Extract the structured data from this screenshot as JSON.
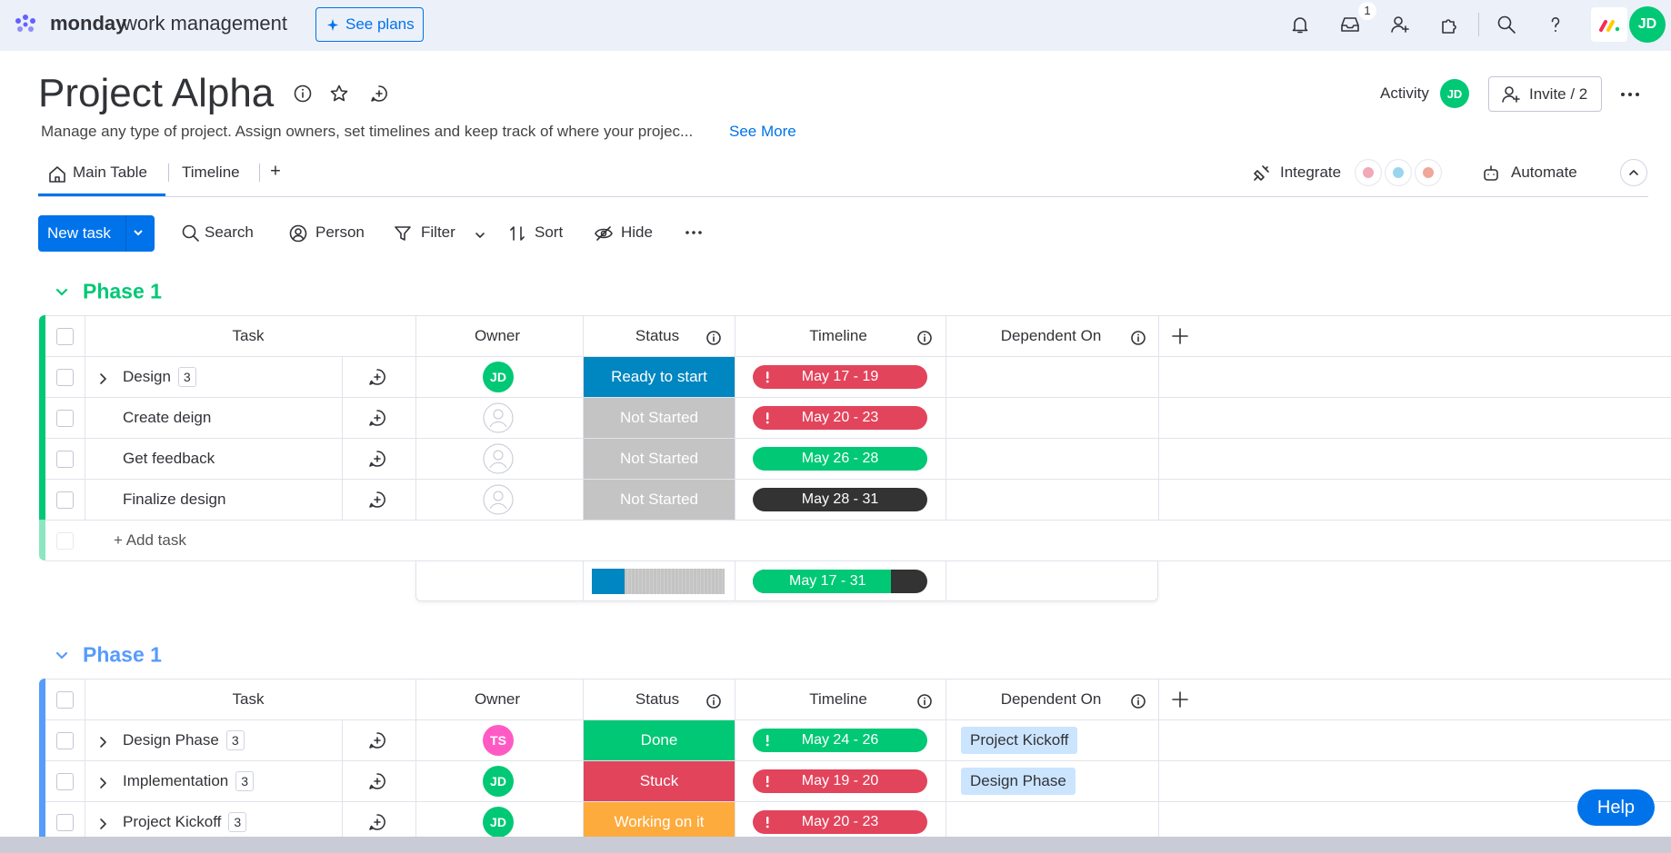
{
  "topbar": {
    "brand": "monday",
    "brand_suffix": "work management",
    "see_plans": "See plans",
    "inbox_badge": 1,
    "avatar": "JD"
  },
  "header": {
    "title": "Project Alpha",
    "description": "Manage any type of project. Assign owners, set timelines and keep track of where your projec...",
    "see_more": "See More",
    "activity": "Activity",
    "activity_avatar": "JD",
    "invite": "Invite / 2"
  },
  "tabs": [
    "Main Table",
    "Timeline"
  ],
  "tab_add": "+",
  "views_right": {
    "integrate": "Integrate",
    "automate": "Automate"
  },
  "toolbar": {
    "new_task": "New task",
    "search": "Search",
    "person": "Person",
    "filter": "Filter",
    "sort": "Sort",
    "hide": "Hide"
  },
  "groups": [
    {
      "title": "Phase 1",
      "color": "#00c875",
      "columns": [
        "Task",
        "Owner",
        "Status",
        "Timeline",
        "Dependent On"
      ],
      "rows": [
        {
          "task": "Design",
          "count": 3,
          "owner": {
            "label": "JD",
            "color": "#00c875"
          },
          "status": {
            "label": "Ready to start",
            "color": "#0086c0"
          },
          "timeline": {
            "label": "May 17 - 19",
            "color": "#e2445c",
            "alert": true
          }
        },
        {
          "task": "Create deign",
          "status": {
            "label": "Not Started",
            "color": "#c4c4c4"
          },
          "timeline": {
            "label": "May 20 - 23",
            "color": "#e2445c",
            "alert": true
          }
        },
        {
          "task": "Get feedback",
          "status": {
            "label": "Not Started",
            "color": "#c4c4c4"
          },
          "timeline": {
            "label": "May 26 - 28",
            "color": "#00c875",
            "alert": false
          }
        },
        {
          "task": "Finalize design",
          "status": {
            "label": "Not Started",
            "color": "#c4c4c4"
          },
          "timeline": {
            "label": "May 28 - 31",
            "color": "#333333",
            "alert": false
          }
        }
      ],
      "add_task": "+ Add task",
      "summary_timeline": "May 17 - 31"
    },
    {
      "title": "Phase 1",
      "color": "#579bfc",
      "columns": [
        "Task",
        "Owner",
        "Status",
        "Timeline",
        "Dependent On"
      ],
      "rows": [
        {
          "task": "Design Phase",
          "count": 3,
          "owner": {
            "label": "TS",
            "color": "#ff5ac4"
          },
          "status": {
            "label": "Done",
            "color": "#00c875"
          },
          "timeline": {
            "label": "May 24 - 26",
            "color": "#00c875",
            "alert": true
          },
          "dependent": "Project Kickoff"
        },
        {
          "task": "Implementation",
          "count": 3,
          "owner": {
            "label": "JD",
            "color": "#00c875"
          },
          "status": {
            "label": "Stuck",
            "color": "#e2445c"
          },
          "timeline": {
            "label": "May 19 - 20",
            "color": "#e2445c",
            "alert": true
          },
          "dependent": "Design Phase"
        },
        {
          "task": "Project Kickoff",
          "count": 3,
          "owner": {
            "label": "JD",
            "color": "#00c875"
          },
          "status": {
            "label": "Working on it",
            "color": "#fdab3d"
          },
          "timeline": {
            "label": "May 20 - 23",
            "color": "#e2445c",
            "alert": true
          }
        }
      ]
    }
  ],
  "help": "Help"
}
